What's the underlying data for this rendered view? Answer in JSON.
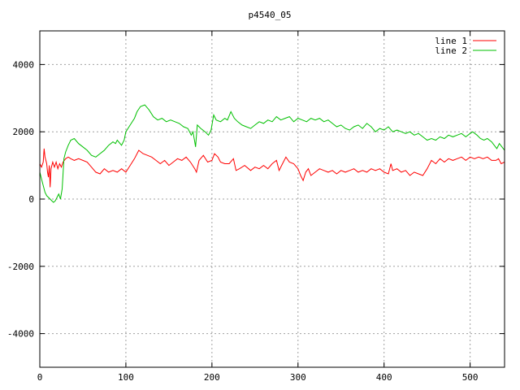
{
  "chart_data": {
    "type": "line",
    "title": "p4540_05",
    "xlim": [
      0,
      540
    ],
    "ylim": [
      -5000,
      5000
    ],
    "x_ticks": [
      0,
      100,
      200,
      300,
      400,
      500
    ],
    "y_ticks": [
      -4000,
      -2000,
      0,
      2000,
      4000
    ],
    "grid": true,
    "legend_position": "top-right",
    "series": [
      {
        "name": "line 1",
        "color": "#ff0000",
        "points": [
          [
            0,
            1050
          ],
          [
            2,
            950
          ],
          [
            4,
            1100
          ],
          [
            5,
            1500
          ],
          [
            6,
            1250
          ],
          [
            8,
            1050
          ],
          [
            9,
            800
          ],
          [
            10,
            650
          ],
          [
            11,
            1000
          ],
          [
            12,
            350
          ],
          [
            13,
            900
          ],
          [
            15,
            1100
          ],
          [
            17,
            950
          ],
          [
            19,
            1100
          ],
          [
            21,
            900
          ],
          [
            23,
            1050
          ],
          [
            25,
            950
          ],
          [
            27,
            1100
          ],
          [
            30,
            1200
          ],
          [
            33,
            1250
          ],
          [
            36,
            1200
          ],
          [
            40,
            1150
          ],
          [
            45,
            1200
          ],
          [
            50,
            1150
          ],
          [
            55,
            1100
          ],
          [
            60,
            950
          ],
          [
            65,
            800
          ],
          [
            70,
            750
          ],
          [
            75,
            900
          ],
          [
            80,
            800
          ],
          [
            85,
            850
          ],
          [
            90,
            800
          ],
          [
            95,
            900
          ],
          [
            100,
            800
          ],
          [
            105,
            1000
          ],
          [
            110,
            1200
          ],
          [
            115,
            1450
          ],
          [
            120,
            1350
          ],
          [
            125,
            1300
          ],
          [
            130,
            1250
          ],
          [
            135,
            1150
          ],
          [
            140,
            1050
          ],
          [
            145,
            1150
          ],
          [
            150,
            1000
          ],
          [
            155,
            1100
          ],
          [
            160,
            1200
          ],
          [
            165,
            1150
          ],
          [
            170,
            1250
          ],
          [
            175,
            1100
          ],
          [
            180,
            900
          ],
          [
            182,
            800
          ],
          [
            185,
            1150
          ],
          [
            190,
            1300
          ],
          [
            195,
            1100
          ],
          [
            200,
            1150
          ],
          [
            203,
            1350
          ],
          [
            207,
            1250
          ],
          [
            210,
            1100
          ],
          [
            215,
            1050
          ],
          [
            220,
            1050
          ],
          [
            225,
            1200
          ],
          [
            228,
            850
          ],
          [
            232,
            900
          ],
          [
            238,
            1000
          ],
          [
            245,
            850
          ],
          [
            250,
            950
          ],
          [
            255,
            900
          ],
          [
            260,
            1000
          ],
          [
            265,
            900
          ],
          [
            270,
            1050
          ],
          [
            275,
            1150
          ],
          [
            278,
            850
          ],
          [
            282,
            1050
          ],
          [
            286,
            1250
          ],
          [
            290,
            1100
          ],
          [
            295,
            1050
          ],
          [
            300,
            900
          ],
          [
            303,
            700
          ],
          [
            306,
            550
          ],
          [
            309,
            800
          ],
          [
            312,
            900
          ],
          [
            315,
            700
          ],
          [
            320,
            800
          ],
          [
            325,
            900
          ],
          [
            330,
            850
          ],
          [
            335,
            800
          ],
          [
            340,
            850
          ],
          [
            345,
            750
          ],
          [
            350,
            850
          ],
          [
            355,
            800
          ],
          [
            360,
            850
          ],
          [
            365,
            900
          ],
          [
            370,
            800
          ],
          [
            375,
            850
          ],
          [
            380,
            800
          ],
          [
            385,
            900
          ],
          [
            390,
            850
          ],
          [
            395,
            900
          ],
          [
            400,
            800
          ],
          [
            405,
            750
          ],
          [
            408,
            1050
          ],
          [
            410,
            850
          ],
          [
            415,
            900
          ],
          [
            420,
            800
          ],
          [
            425,
            850
          ],
          [
            430,
            700
          ],
          [
            435,
            800
          ],
          [
            440,
            750
          ],
          [
            445,
            700
          ],
          [
            450,
            900
          ],
          [
            455,
            1150
          ],
          [
            460,
            1050
          ],
          [
            465,
            1200
          ],
          [
            470,
            1100
          ],
          [
            475,
            1200
          ],
          [
            480,
            1150
          ],
          [
            485,
            1200
          ],
          [
            490,
            1250
          ],
          [
            495,
            1150
          ],
          [
            500,
            1250
          ],
          [
            505,
            1200
          ],
          [
            510,
            1250
          ],
          [
            515,
            1200
          ],
          [
            520,
            1250
          ],
          [
            525,
            1150
          ],
          [
            530,
            1150
          ],
          [
            533,
            1200
          ],
          [
            536,
            1050
          ],
          [
            540,
            1100
          ]
        ]
      },
      {
        "name": "line 2",
        "color": "#00c000",
        "points": [
          [
            0,
            800
          ],
          [
            2,
            600
          ],
          [
            4,
            400
          ],
          [
            6,
            200
          ],
          [
            8,
            100
          ],
          [
            10,
            50
          ],
          [
            12,
            0
          ],
          [
            14,
            -50
          ],
          [
            16,
            -100
          ],
          [
            18,
            -50
          ],
          [
            20,
            50
          ],
          [
            22,
            150
          ],
          [
            24,
            0
          ],
          [
            26,
            300
          ],
          [
            28,
            1200
          ],
          [
            30,
            1400
          ],
          [
            33,
            1600
          ],
          [
            36,
            1750
          ],
          [
            40,
            1800
          ],
          [
            45,
            1650
          ],
          [
            50,
            1550
          ],
          [
            55,
            1450
          ],
          [
            60,
            1300
          ],
          [
            65,
            1250
          ],
          [
            70,
            1350
          ],
          [
            75,
            1450
          ],
          [
            80,
            1600
          ],
          [
            85,
            1700
          ],
          [
            88,
            1650
          ],
          [
            90,
            1750
          ],
          [
            95,
            1600
          ],
          [
            98,
            1750
          ],
          [
            100,
            2000
          ],
          [
            105,
            2200
          ],
          [
            110,
            2400
          ],
          [
            113,
            2600
          ],
          [
            117,
            2750
          ],
          [
            122,
            2800
          ],
          [
            127,
            2650
          ],
          [
            132,
            2450
          ],
          [
            137,
            2350
          ],
          [
            142,
            2400
          ],
          [
            147,
            2300
          ],
          [
            152,
            2350
          ],
          [
            157,
            2300
          ],
          [
            162,
            2250
          ],
          [
            167,
            2150
          ],
          [
            172,
            2100
          ],
          [
            176,
            1900
          ],
          [
            178,
            2000
          ],
          [
            180,
            1700
          ],
          [
            181,
            1550
          ],
          [
            183,
            2200
          ],
          [
            187,
            2100
          ],
          [
            192,
            2000
          ],
          [
            196,
            1900
          ],
          [
            199,
            2050
          ],
          [
            202,
            2500
          ],
          [
            205,
            2350
          ],
          [
            210,
            2300
          ],
          [
            215,
            2400
          ],
          [
            218,
            2350
          ],
          [
            222,
            2600
          ],
          [
            226,
            2400
          ],
          [
            230,
            2300
          ],
          [
            235,
            2200
          ],
          [
            240,
            2150
          ],
          [
            245,
            2100
          ],
          [
            250,
            2200
          ],
          [
            255,
            2300
          ],
          [
            260,
            2250
          ],
          [
            265,
            2350
          ],
          [
            270,
            2300
          ],
          [
            275,
            2450
          ],
          [
            280,
            2350
          ],
          [
            285,
            2400
          ],
          [
            290,
            2450
          ],
          [
            295,
            2300
          ],
          [
            300,
            2400
          ],
          [
            305,
            2350
          ],
          [
            310,
            2300
          ],
          [
            315,
            2400
          ],
          [
            320,
            2350
          ],
          [
            325,
            2400
          ],
          [
            330,
            2300
          ],
          [
            335,
            2350
          ],
          [
            340,
            2250
          ],
          [
            345,
            2150
          ],
          [
            350,
            2200
          ],
          [
            355,
            2100
          ],
          [
            360,
            2050
          ],
          [
            365,
            2150
          ],
          [
            370,
            2200
          ],
          [
            375,
            2100
          ],
          [
            380,
            2250
          ],
          [
            385,
            2150
          ],
          [
            390,
            2000
          ],
          [
            395,
            2100
          ],
          [
            400,
            2050
          ],
          [
            405,
            2150
          ],
          [
            410,
            2000
          ],
          [
            415,
            2050
          ],
          [
            420,
            2000
          ],
          [
            425,
            1950
          ],
          [
            430,
            2000
          ],
          [
            435,
            1900
          ],
          [
            440,
            1950
          ],
          [
            445,
            1850
          ],
          [
            450,
            1750
          ],
          [
            455,
            1800
          ],
          [
            460,
            1750
          ],
          [
            465,
            1850
          ],
          [
            470,
            1800
          ],
          [
            475,
            1900
          ],
          [
            480,
            1850
          ],
          [
            485,
            1900
          ],
          [
            490,
            1950
          ],
          [
            495,
            1850
          ],
          [
            500,
            1950
          ],
          [
            503,
            2000
          ],
          [
            508,
            1900
          ],
          [
            512,
            1800
          ],
          [
            516,
            1750
          ],
          [
            520,
            1800
          ],
          [
            525,
            1700
          ],
          [
            528,
            1600
          ],
          [
            531,
            1500
          ],
          [
            534,
            1650
          ],
          [
            537,
            1550
          ],
          [
            540,
            1450
          ]
        ]
      }
    ]
  }
}
